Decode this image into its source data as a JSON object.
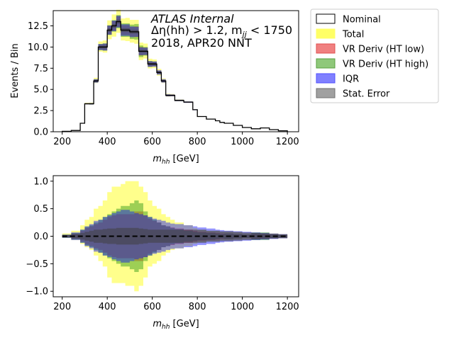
{
  "chart_data": [
    {
      "type": "step-histogram",
      "xlabel_main": "m",
      "xlabel_sub": "hh",
      "xlabel_unit": " [GeV]",
      "ylabel": "Events / Bin",
      "xlim": [
        160,
        1250
      ],
      "ylim": [
        0,
        14.3
      ],
      "xticks": [
        200,
        400,
        600,
        800,
        1000,
        1200
      ],
      "yticks": [
        0.0,
        2.5,
        5.0,
        7.5,
        10.0,
        12.5
      ],
      "ytick_labels": [
        "0.0",
        "2.5",
        "5.0",
        "7.5",
        "10.0",
        "12.5"
      ],
      "annotations": {
        "line1": "ATLAS Internal",
        "line2_a": "Δη(hh) > 1.2, m",
        "line2_sub": "jj",
        "line2_b": " < 1750",
        "line3": "2018, APR20 NNT"
      },
      "bin_edges": [
        200,
        240,
        280,
        300,
        320,
        340,
        360,
        380,
        400,
        420,
        440,
        460,
        480,
        500,
        520,
        540,
        560,
        580,
        600,
        620,
        640,
        660,
        680,
        700,
        740,
        780,
        800,
        840,
        880,
        900,
        920,
        960,
        1000,
        1040,
        1080,
        1120,
        1160,
        1200
      ],
      "nominal": [
        0.05,
        0.15,
        1.0,
        3.3,
        3.3,
        6.0,
        10.0,
        10.0,
        12.0,
        12.5,
        13.0,
        12.0,
        12.0,
        11.8,
        11.8,
        9.5,
        9.5,
        8.0,
        8.0,
        7.0,
        6.0,
        4.3,
        4.3,
        3.7,
        3.5,
        2.6,
        1.8,
        1.5,
        1.3,
        1.1,
        1.0,
        0.75,
        0.5,
        0.35,
        0.45,
        0.25,
        0.12
      ],
      "total_frac": [
        0.05,
        0.1,
        0.2,
        0.3,
        0.35,
        0.5,
        0.55,
        0.65,
        0.8,
        0.9,
        0.9,
        0.95,
        1.0,
        1.0,
        1.0,
        0.9,
        0.8,
        0.65,
        0.55,
        0.5,
        0.4,
        0.35,
        0.3,
        0.25,
        0.2,
        0.15,
        0.12,
        0.1,
        0.1,
        0.08,
        0.08,
        0.07,
        0.05,
        0.06,
        0.06,
        0.05,
        0.04
      ],
      "total_frac_low": [
        0.03,
        0.07,
        0.14,
        0.2,
        0.25,
        0.35,
        0.45,
        0.55,
        0.75,
        0.85,
        0.85,
        0.85,
        0.9,
        0.9,
        1.0,
        0.9,
        0.75,
        0.55,
        0.5,
        0.45,
        0.35,
        0.3,
        0.25,
        0.22,
        0.18,
        0.14,
        0.11,
        0.09,
        0.09,
        0.07,
        0.07,
        0.06,
        0.05,
        0.05,
        0.05,
        0.04,
        0.04
      ],
      "high_frac": [
        0.03,
        0.06,
        0.12,
        0.17,
        0.2,
        0.25,
        0.3,
        0.35,
        0.4,
        0.45,
        0.5,
        0.55,
        0.55,
        0.6,
        0.65,
        0.6,
        0.45,
        0.35,
        0.3,
        0.25,
        0.2,
        0.18,
        0.15,
        0.13,
        0.1,
        0.08,
        0.07,
        0.06,
        0.05,
        0.04,
        0.05,
        0.04,
        0.03,
        0.07,
        0.07,
        0.04,
        0.03
      ],
      "low_frac": [
        0.02,
        0.05,
        0.1,
        0.15,
        0.18,
        0.22,
        0.25,
        0.3,
        0.35,
        0.38,
        0.4,
        0.4,
        0.4,
        0.4,
        0.45,
        0.45,
        0.38,
        0.32,
        0.28,
        0.25,
        0.2,
        0.18,
        0.16,
        0.14,
        0.12,
        0.1,
        0.08,
        0.07,
        0.06,
        0.05,
        0.05,
        0.04,
        0.03,
        0.05,
        0.05,
        0.04,
        0.03
      ],
      "iqr_frac": [
        0.03,
        0.07,
        0.12,
        0.18,
        0.22,
        0.28,
        0.3,
        0.35,
        0.38,
        0.42,
        0.45,
        0.48,
        0.48,
        0.45,
        0.42,
        0.4,
        0.38,
        0.35,
        0.32,
        0.3,
        0.28,
        0.25,
        0.23,
        0.22,
        0.2,
        0.18,
        0.16,
        0.14,
        0.12,
        0.11,
        0.1,
        0.09,
        0.08,
        0.07,
        0.06,
        0.05,
        0.04
      ],
      "stat_frac": [
        0.02,
        0.04,
        0.06,
        0.08,
        0.1,
        0.12,
        0.12,
        0.13,
        0.14,
        0.14,
        0.15,
        0.15,
        0.15,
        0.15,
        0.15,
        0.14,
        0.13,
        0.12,
        0.12,
        0.12,
        0.12,
        0.12,
        0.12,
        0.12,
        0.12,
        0.12,
        0.12,
        0.1,
        0.1,
        0.09,
        0.09,
        0.08,
        0.07,
        0.06,
        0.05,
        0.04,
        0.03
      ]
    },
    {
      "type": "step-band-ratio",
      "xlabel_main": "m",
      "xlabel_sub": "hh",
      "xlabel_unit": " [GeV]",
      "xlim": [
        160,
        1250
      ],
      "ylim": [
        -1.1,
        1.1
      ],
      "xticks": [
        200,
        400,
        600,
        800,
        1000,
        1200
      ],
      "yticks": [
        -1.0,
        -0.5,
        0.0,
        0.5,
        1.0
      ],
      "ytick_labels": [
        "−1.0",
        "−0.5",
        "0.0",
        "0.5",
        "1.0"
      ],
      "reference_line": 0
    }
  ],
  "legend": {
    "placement": "outside-right-top",
    "entries": [
      {
        "label": "Nominal",
        "fill": "#ffffff",
        "edge": "#000000"
      },
      {
        "label": "Total",
        "fill": "#ffff66",
        "edge": "#ffff66"
      },
      {
        "label": "VR Deriv (HT low)",
        "fill": "#f08080",
        "edge": "#e05050"
      },
      {
        "label": "VR Deriv (HT high)",
        "fill": "#8fc87a",
        "edge": "#5aa040"
      },
      {
        "label": "IQR",
        "fill": "#8080ff",
        "edge": "#5050ff"
      },
      {
        "label": "Stat. Error",
        "fill": "#a0a0a0",
        "edge": "#707070"
      }
    ]
  },
  "colors": {
    "total": "#ffff00",
    "low": "#ff0000",
    "high": "#3ca01e",
    "iqr": "#0000ff",
    "stat": "#404040",
    "nominal": "#000000"
  }
}
